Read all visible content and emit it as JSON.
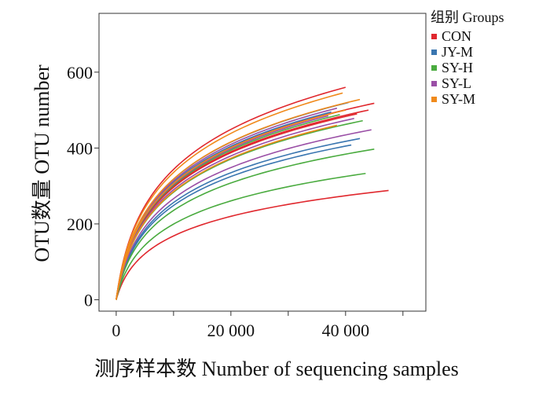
{
  "chart_data": {
    "type": "line",
    "xlabel": "测序样本数 Number of sequencing samples",
    "ylabel": "OTU数量 OTU number",
    "xlim": [
      -3000,
      54000
    ],
    "ylim": [
      -30,
      755
    ],
    "x_ticks": [
      0,
      20000,
      40000
    ],
    "x_tick_labels": [
      "0",
      "20 000",
      "40 000"
    ],
    "y_ticks": [
      0,
      200,
      400,
      600
    ],
    "y_tick_labels": [
      "0",
      "200",
      "400",
      "600"
    ],
    "grid": false,
    "legend": {
      "title": "组别 Groups",
      "placement": "outside-right-top",
      "entries": [
        {
          "name": "CON",
          "color": "#e0282e"
        },
        {
          "name": "JY-M",
          "color": "#3a76b0"
        },
        {
          "name": "SY-H",
          "color": "#4aab3f"
        },
        {
          "name": "SY-L",
          "color": "#9a4fa6"
        },
        {
          "name": "SY-M",
          "color": "#f08a1c"
        }
      ]
    },
    "series": [
      {
        "group": "CON",
        "color": "#e0282e",
        "end_x": 40000,
        "end_y": 560
      },
      {
        "group": "CON",
        "color": "#e0282e",
        "end_x": 45000,
        "end_y": 518
      },
      {
        "group": "CON",
        "color": "#e0282e",
        "end_x": 44000,
        "end_y": 500
      },
      {
        "group": "CON",
        "color": "#e0282e",
        "end_x": 42000,
        "end_y": 490
      },
      {
        "group": "CON",
        "color": "#e0282e",
        "end_x": 47500,
        "end_y": 288
      },
      {
        "group": "JY-M",
        "color": "#3a76b0",
        "end_x": 42500,
        "end_y": 425
      },
      {
        "group": "JY-M",
        "color": "#3a76b0",
        "end_x": 41000,
        "end_y": 408
      },
      {
        "group": "JY-M",
        "color": "#3a76b0",
        "end_x": 40500,
        "end_y": 520
      },
      {
        "group": "JY-M",
        "color": "#3a76b0",
        "end_x": 37500,
        "end_y": 495
      },
      {
        "group": "SY-H",
        "color": "#4aab3f",
        "end_x": 45000,
        "end_y": 397
      },
      {
        "group": "SY-H",
        "color": "#4aab3f",
        "end_x": 43500,
        "end_y": 333
      },
      {
        "group": "SY-H",
        "color": "#4aab3f",
        "end_x": 43000,
        "end_y": 472
      },
      {
        "group": "SY-H",
        "color": "#4aab3f",
        "end_x": 39000,
        "end_y": 488
      },
      {
        "group": "SY-L",
        "color": "#9a4fa6",
        "end_x": 44500,
        "end_y": 448
      },
      {
        "group": "SY-L",
        "color": "#9a4fa6",
        "end_x": 41500,
        "end_y": 478
      },
      {
        "group": "SY-L",
        "color": "#9a4fa6",
        "end_x": 38500,
        "end_y": 505
      },
      {
        "group": "SY-L",
        "color": "#9a4fa6",
        "end_x": 37000,
        "end_y": 485
      },
      {
        "group": "SY-M",
        "color": "#f08a1c",
        "end_x": 42500,
        "end_y": 528
      },
      {
        "group": "SY-M",
        "color": "#f08a1c",
        "end_x": 40000,
        "end_y": 500
      },
      {
        "group": "SY-M",
        "color": "#f08a1c",
        "end_x": 38500,
        "end_y": 460
      },
      {
        "group": "SY-M",
        "color": "#f08a1c",
        "end_x": 39500,
        "end_y": 545
      }
    ]
  }
}
